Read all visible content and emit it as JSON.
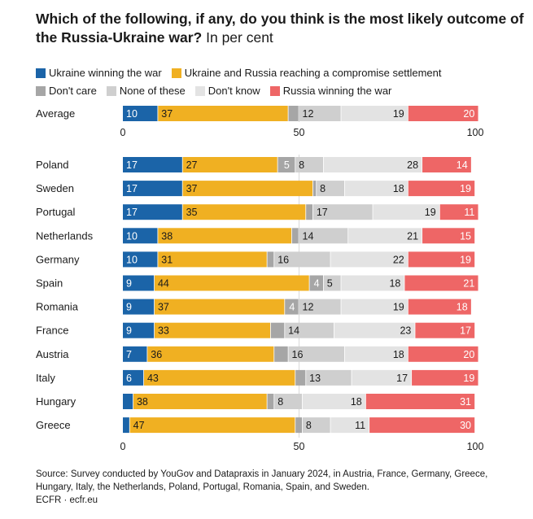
{
  "title": "Which of the following, if any, do you think is the most likely outcome of the Russia-Ukraine war?",
  "subtitle": "In per cent",
  "source": "Source: Survey conducted by YouGov and Datapraxis in January 2024, in Austria, France, Germany, Greece, Hungary, Italy, the Netherlands, Poland, Portugal, Romania, Spain, and Sweden.",
  "credit": "ECFR · ecfr.eu",
  "colors": {
    "ukraine": "#1b64a8",
    "compromise": "#f0b022",
    "dont_care": "#a6a6a6",
    "none": "#cfcfcf",
    "dont_know": "#e3e3e3",
    "russia": "#ee6666"
  },
  "chart_data": {
    "type": "bar",
    "orientation": "horizontal",
    "stacked": true,
    "xlim": [
      0,
      100
    ],
    "xticks": [
      "0",
      "50",
      "100"
    ],
    "series": [
      {
        "name": "Ukraine winning the war",
        "key": "ukraine"
      },
      {
        "name": "Ukraine and Russia reaching a compromise settlement",
        "key": "compromise"
      },
      {
        "name": "Don't care",
        "key": "dont_care"
      },
      {
        "name": "None of these",
        "key": "none"
      },
      {
        "name": "Don't know",
        "key": "dont_know"
      },
      {
        "name": "Russia winning the war",
        "key": "russia"
      }
    ],
    "average": {
      "category": "Average",
      "values": [
        10,
        37,
        3,
        12,
        19,
        20
      ]
    },
    "categories": [
      "Poland",
      "Sweden",
      "Portugal",
      "Netherlands",
      "Germany",
      "Spain",
      "Romania",
      "France",
      "Austria",
      "Italy",
      "Hungary",
      "Greece"
    ],
    "values": [
      [
        17,
        27,
        5,
        8,
        28,
        14
      ],
      [
        17,
        37,
        1,
        8,
        18,
        19
      ],
      [
        17,
        35,
        2,
        17,
        19,
        11
      ],
      [
        10,
        38,
        2,
        14,
        21,
        15
      ],
      [
        10,
        31,
        2,
        16,
        22,
        19
      ],
      [
        9,
        44,
        4,
        5,
        18,
        21
      ],
      [
        9,
        37,
        4,
        12,
        19,
        18
      ],
      [
        9,
        33,
        4,
        14,
        23,
        17
      ],
      [
        7,
        36,
        4,
        16,
        18,
        20
      ],
      [
        6,
        43,
        3,
        13,
        17,
        19
      ],
      [
        3,
        38,
        2,
        8,
        18,
        31
      ],
      [
        2,
        47,
        2,
        8,
        11,
        30
      ]
    ],
    "labels": [
      [
        "17",
        "27",
        "5",
        "8",
        "28",
        "14"
      ],
      [
        "17",
        "37",
        "",
        "8",
        "18",
        "19"
      ],
      [
        "17",
        "35",
        "",
        "17",
        "19",
        "11"
      ],
      [
        "10",
        "38",
        "",
        "14",
        "21",
        "15"
      ],
      [
        "10",
        "31",
        "",
        "16",
        "22",
        "19"
      ],
      [
        "9",
        "44",
        "4",
        "5",
        "18",
        "21"
      ],
      [
        "9",
        "37",
        "4",
        "12",
        "19",
        "18"
      ],
      [
        "9",
        "33",
        "",
        "14",
        "23",
        "17"
      ],
      [
        "7",
        "36",
        "",
        "16",
        "18",
        "20"
      ],
      [
        "6",
        "43",
        "",
        "13",
        "17",
        "19"
      ],
      [
        "",
        "38",
        "",
        "8",
        "18",
        "31"
      ],
      [
        "",
        "47",
        "",
        "8",
        "11",
        "30"
      ]
    ],
    "average_labels": [
      "10",
      "37",
      "",
      "12",
      "19",
      "20"
    ]
  }
}
